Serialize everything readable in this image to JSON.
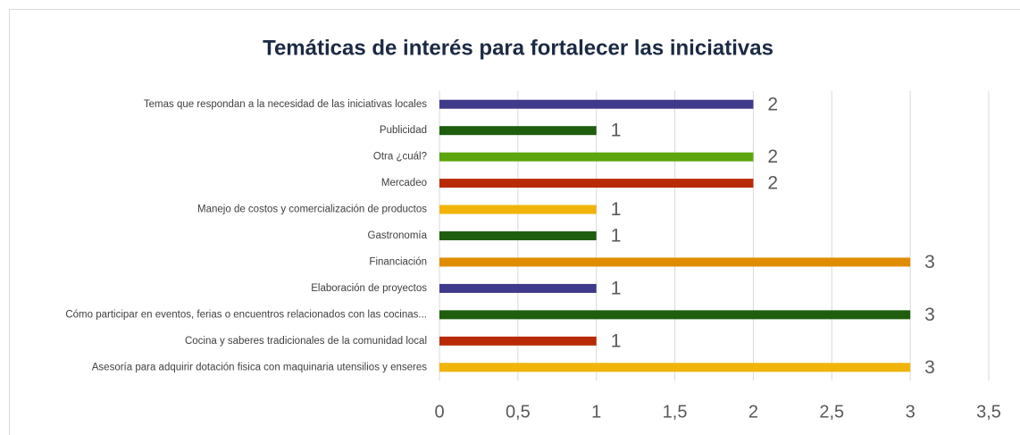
{
  "chart_data": {
    "type": "hbar",
    "title": "Temáticas de interés para fortalecer las iniciativas",
    "categories": [
      "Temas que respondan a la necesidad de las iniciativas locales",
      "Publicidad",
      "Otra ¿cuál?",
      "Mercadeo",
      "Manejo de costos y comercialización de productos",
      "Gastronomía",
      "Financiación",
      "Elaboración de proyectos",
      "Cómo participar en eventos, ferias o encuentros relacionados con las cocinas...",
      "Cocina y saberes tradicionales de la comunidad local",
      "Asesoría para adquirir dotación fisica con maquinaria utensilios y enseres"
    ],
    "values": [
      2,
      1,
      2,
      2,
      1,
      1,
      3,
      1,
      3,
      1,
      3
    ],
    "colors": [
      "#3f3a8a",
      "#1e5e0e",
      "#5da50e",
      "#b82a06",
      "#f0b40a",
      "#1e5e0e",
      "#e08c00",
      "#3f3a8a",
      "#1e5e0e",
      "#b82a06",
      "#f0b40a"
    ],
    "xlim": [
      0,
      3.5
    ],
    "xticks": [
      0,
      {
        "value": 0.5,
        "label": "0,5"
      },
      1,
      {
        "value": 1.5,
        "label": "1,5"
      },
      2,
      {
        "value": 2.5,
        "label": "2,5"
      },
      3,
      {
        "value": 3.5,
        "label": "3,5"
      }
    ],
    "grid": true
  }
}
